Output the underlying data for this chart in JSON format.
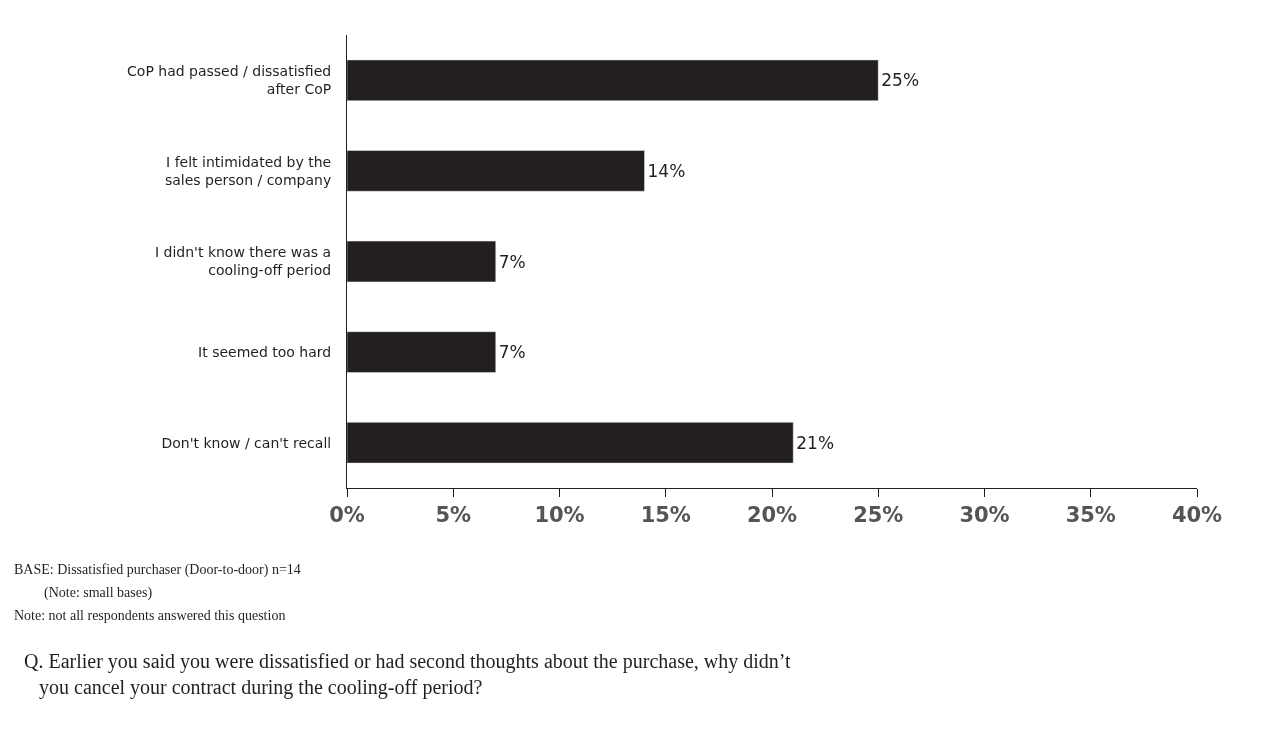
{
  "chart_data": {
    "type": "bar",
    "orientation": "horizontal",
    "categories": [
      "CoP had passed / dissatisfied after CoP",
      "I felt intimidated by the sales person / company",
      "I didn't know there was a cooling-off period",
      "It seemed too hard",
      "Don't know / can't recall"
    ],
    "values": [
      25,
      14,
      7,
      7,
      21
    ],
    "value_labels": [
      "25%",
      "14%",
      "7%",
      "7%",
      "21%"
    ],
    "color": "#231f20",
    "xlim": [
      0,
      40
    ],
    "xticks": [
      {
        "value": 0,
        "label": "0%"
      },
      {
        "value": 5,
        "label": "5%"
      },
      {
        "value": 10,
        "label": "10%"
      },
      {
        "value": 15,
        "label": "15%"
      },
      {
        "value": 20,
        "label": "20%"
      },
      {
        "value": 25,
        "label": "25%"
      },
      {
        "value": 30,
        "label": "30%"
      },
      {
        "value": 35,
        "label": "35%"
      },
      {
        "value": 40,
        "label": "40%"
      }
    ],
    "annotations": [
      "BASE: Dissatisfied purchaser (Door-to-door) n=14",
      "(Note: small bases)",
      "Note: not all respondents answered this question",
      "Q. Earlier you said you were dissatisfied or had second thoughts about the purchase, why didn’t you cancel your contract during the cooling-off period?"
    ]
  }
}
